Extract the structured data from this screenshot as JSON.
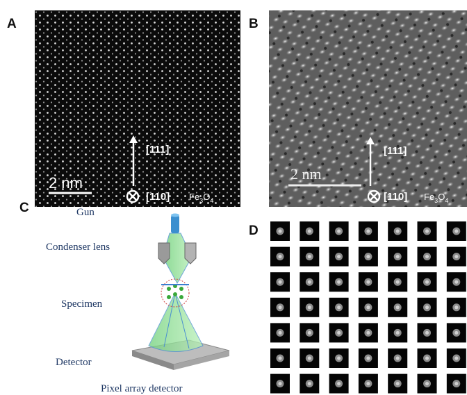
{
  "panels": {
    "a": {
      "label": "A",
      "direction_up": "[111]",
      "direction_in": "[110]",
      "formula": [
        "Fe",
        "3",
        "O",
        "4"
      ],
      "scale": "2 nm"
    },
    "b": {
      "label": "B",
      "direction_up": "[111]",
      "direction_in": "[110]",
      "formula": [
        "Fe",
        "3",
        "O",
        "4"
      ],
      "scale": "2 nm"
    },
    "c": {
      "label": "C",
      "gun": "Gun",
      "lens": "Condenser lens",
      "specimen": "Specimen",
      "detector": "Detector",
      "caption": "Pixel array detector"
    },
    "d": {
      "label": "D"
    }
  }
}
